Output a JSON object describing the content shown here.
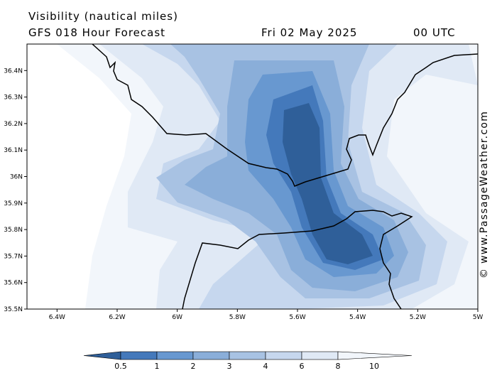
{
  "header": {
    "title": "Visibility (nautical miles)",
    "subtitle": "GFS 018 Hour Forecast",
    "date": "Fri 02 May 2025",
    "time": "00 UTC"
  },
  "credit": "© www.PassageWeather.com",
  "map": {
    "lat_labels": [
      "35.5N",
      "35.6N",
      "35.7N",
      "35.8N",
      "35.9N",
      "36N",
      "36.1N",
      "36.2N",
      "36.3N",
      "36.4N"
    ],
    "lon_labels": [
      "6.4W",
      "6.2W",
      "6W",
      "5.8W",
      "5.6W",
      "5.4W",
      "5.2W",
      "5W"
    ],
    "lat_range": [
      35.5,
      36.5
    ],
    "lon_range": [
      -6.5,
      -5.0
    ]
  },
  "colorbar": {
    "labels": [
      "0.5",
      "1",
      "2",
      "3",
      "4",
      "6",
      "8",
      "10"
    ],
    "colors": [
      "#2f5f99",
      "#4479bb",
      "#6898d0",
      "#8aaed9",
      "#a8c2e3",
      "#c6d7ee",
      "#e0e9f5",
      "#f2f6fb"
    ]
  }
}
